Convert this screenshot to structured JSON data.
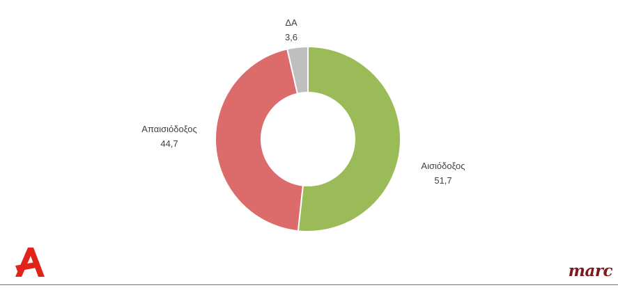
{
  "chart_data": {
    "type": "pie",
    "donut": true,
    "slices": [
      {
        "label": "Αισιόδοξος",
        "value": 51.7,
        "value_label": "51,7",
        "color": "#9bbb59"
      },
      {
        "label": "Απαισιόδοξος",
        "value": 44.7,
        "value_label": "44,7",
        "color": "#dc6b6b"
      },
      {
        "label": "ΔΑ",
        "value": 3.6,
        "value_label": "3,6",
        "color": "#bfbfbf"
      }
    ]
  },
  "logos": {
    "brand_mark": "Λ",
    "pollster": "marc"
  }
}
